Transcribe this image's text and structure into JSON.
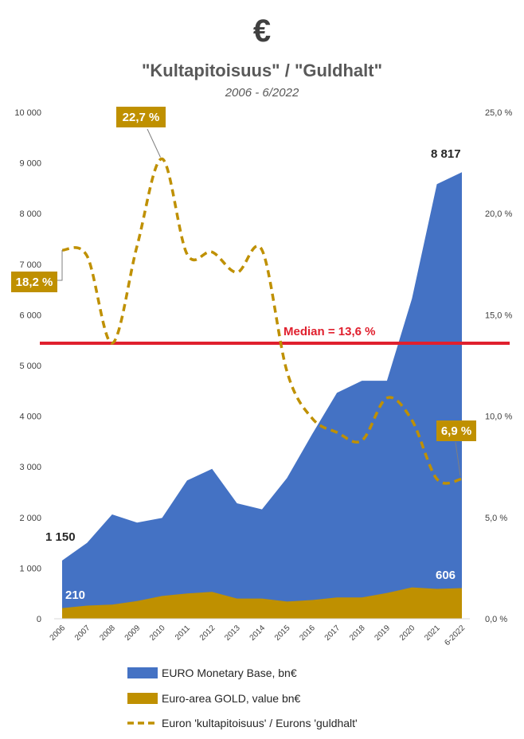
{
  "header": {
    "symbol": "€",
    "title": "\"Kultapitoisuus\" / \"Guldhalt\"",
    "subtitle": "2006 - 6/2022"
  },
  "colors": {
    "monetary_base": "#4472c4",
    "gold": "#bf9000",
    "ratio_line": "#bf9000",
    "median": "#e0202e",
    "callout_bg": "#bf9000"
  },
  "chart_data": {
    "type": "area",
    "categories": [
      "2006",
      "2007",
      "2008",
      "2009",
      "2010",
      "2011",
      "2012",
      "2013",
      "2014",
      "2015",
      "2016",
      "2017",
      "2018",
      "2019",
      "2020",
      "2021",
      "6-2022"
    ],
    "series": [
      {
        "name": "EURO Monetary Base, bn€",
        "type": "area",
        "axis": "left",
        "values": [
          1150,
          1500,
          2060,
          1900,
          1990,
          2730,
          2960,
          2280,
          2160,
          2780,
          3640,
          4460,
          4700,
          4700,
          6320,
          8580,
          8817
        ]
      },
      {
        "name": "Euro-area GOLD, value bn€",
        "type": "area",
        "axis": "left",
        "values": [
          210,
          260,
          280,
          350,
          450,
          500,
          530,
          400,
          400,
          340,
          370,
          420,
          420,
          510,
          620,
          590,
          606
        ]
      },
      {
        "name": "Euron 'kultapitoisuus' / Eurons 'guldhalt'",
        "type": "line",
        "style": "dashed",
        "axis": "right",
        "values": [
          18.2,
          17.9,
          13.6,
          18.4,
          22.7,
          18.0,
          18.1,
          17.1,
          18.2,
          12.2,
          9.9,
          9.2,
          8.8,
          10.9,
          9.8,
          6.9,
          6.9
        ]
      }
    ],
    "y_left": {
      "min": 0,
      "max": 10000,
      "ticks": [
        "0",
        "1 000",
        "2 000",
        "3 000",
        "4 000",
        "5 000",
        "6 000",
        "7 000",
        "8 000",
        "9 000",
        "10 000"
      ]
    },
    "y_right": {
      "min": 0,
      "max": 25,
      "ticks": [
        "0,0 %",
        "5,0 %",
        "10,0 %",
        "15,0 %",
        "20,0 %",
        "25,0 %"
      ]
    },
    "median": {
      "value": 13.6,
      "label": "Median = 13,6 %"
    },
    "annotations": {
      "first_ratio": "18,2 %",
      "peak_ratio": "22,7 %",
      "last_ratio": "6,9 %",
      "first_base": "1 150",
      "last_base": "8 817",
      "first_gold": "210",
      "last_gold": "606"
    },
    "grid": false,
    "legend": "bottom"
  }
}
